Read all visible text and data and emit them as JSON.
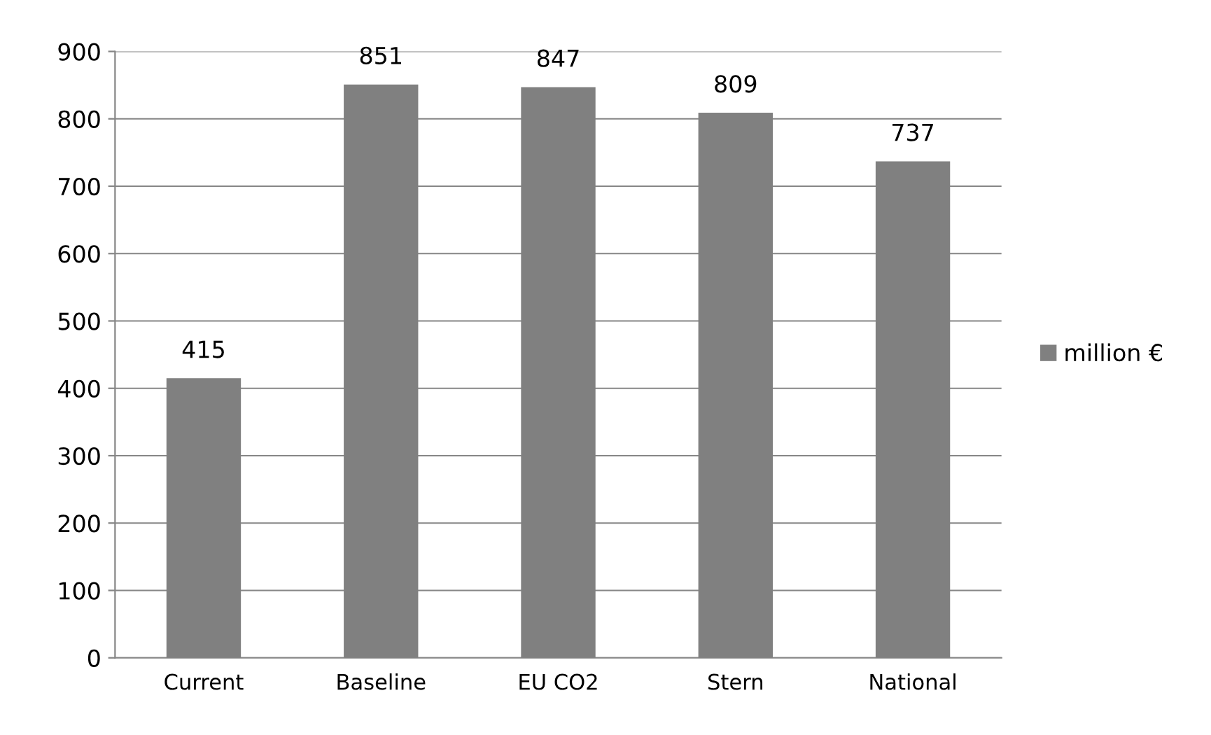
{
  "chart_data": {
    "type": "bar",
    "categories": [
      "Current",
      "Baseline",
      "EU CO2",
      "Stern",
      "National"
    ],
    "series": [
      {
        "name": "million €",
        "color": "#808080",
        "values": [
          415,
          851,
          847,
          809,
          737
        ]
      }
    ],
    "ylim": [
      0,
      900
    ],
    "yticks": [
      0,
      100,
      200,
      300,
      400,
      500,
      600,
      700,
      800,
      900
    ],
    "grid": "y",
    "legend": "right",
    "data_labels": true
  }
}
